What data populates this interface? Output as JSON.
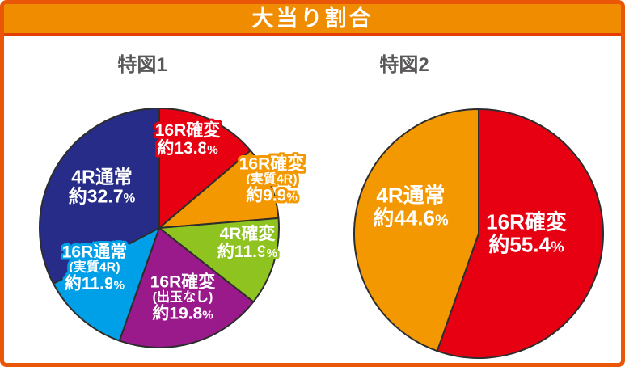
{
  "header": {
    "title": "大当り割合"
  },
  "colors": {
    "frame_border": "#e85606",
    "header_bg": "#f08c00",
    "header_separator": "#e23c00",
    "header_text": "#ffffff",
    "chart_title_text": "#595757",
    "slice_outline_stroke": "#2d2d2d",
    "red": "#e60012",
    "orange": "#f39800",
    "green": "#8fc31f",
    "purple": "#9a1a8c",
    "cyan": "#00a0e9",
    "navy": "#262c87"
  },
  "chart_data": [
    {
      "type": "pie",
      "title": "特図1",
      "unit": "%",
      "start_angle_deg": 0,
      "direction": "clockwise",
      "legend_position": "none",
      "slices": [
        {
          "name": "16R確変",
          "qualifier": "",
          "value": 13.8,
          "value_text": "約13.8",
          "color": "#e60012",
          "outlined": true
        },
        {
          "name": "16R確変",
          "qualifier": "(実質4R)",
          "value": 9.9,
          "value_text": "約9.9",
          "color": "#f39800",
          "outlined": true
        },
        {
          "name": "4R確変",
          "qualifier": "",
          "value": 11.9,
          "value_text": "約11.9",
          "color": "#8fc31f",
          "outlined": true
        },
        {
          "name": "16R確変",
          "qualifier": "(出玉なし)",
          "value": 19.8,
          "value_text": "約19.8",
          "color": "#9a1a8c",
          "outlined": false
        },
        {
          "name": "16R通常",
          "qualifier": "(実質4R)",
          "value": 11.9,
          "value_text": "約11.9",
          "color": "#00a0e9",
          "outlined": true
        },
        {
          "name": "4R通常",
          "qualifier": "",
          "value": 32.7,
          "value_text": "約32.7",
          "color": "#262c87",
          "outlined": false
        }
      ]
    },
    {
      "type": "pie",
      "title": "特図2",
      "unit": "%",
      "start_angle_deg": 0,
      "direction": "clockwise",
      "legend_position": "none",
      "slices": [
        {
          "name": "16R確変",
          "qualifier": "",
          "value": 55.4,
          "value_text": "約55.4",
          "color": "#e60012",
          "outlined": false
        },
        {
          "name": "4R通常",
          "qualifier": "",
          "value": 44.6,
          "value_text": "約44.6",
          "color": "#f39800",
          "outlined": false
        }
      ]
    }
  ]
}
